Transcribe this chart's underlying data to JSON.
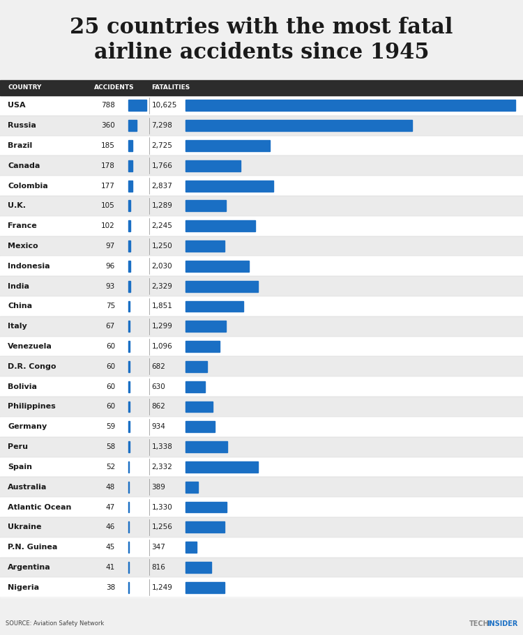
{
  "title": "25 countries with the most fatal\nairline accidents since 1945",
  "countries": [
    "USA",
    "Russia",
    "Brazil",
    "Canada",
    "Colombia",
    "U.K.",
    "France",
    "Mexico",
    "Indonesia",
    "India",
    "China",
    "Italy",
    "Venezuela",
    "D.R. Congo",
    "Bolivia",
    "Philippines",
    "Germany",
    "Peru",
    "Spain",
    "Australia",
    "Atlantic Ocean",
    "Ukraine",
    "P.N. Guinea",
    "Argentina",
    "Nigeria"
  ],
  "accidents": [
    788,
    360,
    185,
    178,
    177,
    105,
    102,
    97,
    96,
    93,
    75,
    67,
    60,
    60,
    60,
    60,
    59,
    58,
    52,
    48,
    47,
    46,
    45,
    41,
    38
  ],
  "fatalities": [
    10625,
    7298,
    2725,
    1766,
    2837,
    1289,
    2245,
    1250,
    2030,
    2329,
    1851,
    1299,
    1096,
    682,
    630,
    862,
    934,
    1338,
    2332,
    389,
    1330,
    1256,
    347,
    816,
    1249
  ],
  "bar_color": "#1a6fc4",
  "accidents_bar_color": "#1a6fc4",
  "header_bg": "#2c2c2c",
  "header_text": "#ffffff",
  "title_fontsize": 22,
  "background_color": "#f0f0f0",
  "row_colors": [
    "#ffffff",
    "#ebebeb"
  ],
  "source_text": "SOURCE: Aviation Safety Network",
  "brand_text_tech": "TECH",
  "brand_text_insider": "INSIDER",
  "brand_color_tech": "#888888",
  "brand_color_insider": "#1a6fc4",
  "max_fatalities": 10625
}
